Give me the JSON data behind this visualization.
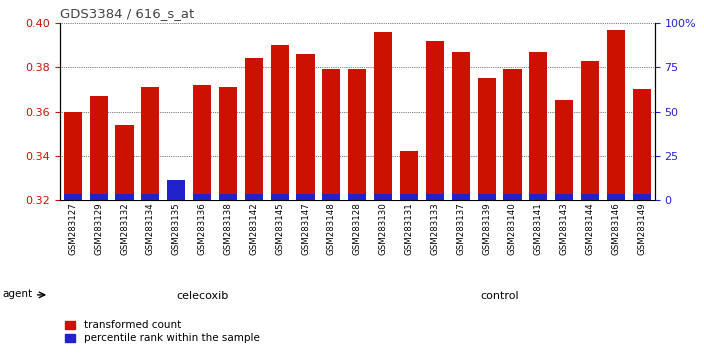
{
  "title": "GDS3384 / 616_s_at",
  "samples": [
    "GSM283127",
    "GSM283129",
    "GSM283132",
    "GSM283134",
    "GSM283135",
    "GSM283136",
    "GSM283138",
    "GSM283142",
    "GSM283145",
    "GSM283147",
    "GSM283148",
    "GSM283128",
    "GSM283130",
    "GSM283131",
    "GSM283133",
    "GSM283137",
    "GSM283139",
    "GSM283140",
    "GSM283141",
    "GSM283143",
    "GSM283144",
    "GSM283146",
    "GSM283149"
  ],
  "transformed_count": [
    0.36,
    0.367,
    0.354,
    0.371,
    0.321,
    0.372,
    0.371,
    0.384,
    0.39,
    0.386,
    0.379,
    0.379,
    0.396,
    0.342,
    0.392,
    0.387,
    0.375,
    0.379,
    0.387,
    0.365,
    0.383,
    0.397,
    0.37
  ],
  "percentile_rank_val": [
    0.3225,
    0.3225,
    0.3225,
    0.3225,
    0.329,
    0.3225,
    0.3225,
    0.3225,
    0.3225,
    0.3225,
    0.3225,
    0.3225,
    0.3225,
    0.3225,
    0.3225,
    0.3225,
    0.3225,
    0.3225,
    0.3225,
    0.3225,
    0.3225,
    0.3225,
    0.3225
  ],
  "celecoxib_count": 11,
  "control_count": 12,
  "ylim_left": [
    0.32,
    0.4
  ],
  "ylim_right": [
    0,
    100
  ],
  "yticks_left": [
    0.32,
    0.34,
    0.36,
    0.38,
    0.4
  ],
  "yticks_right": [
    0,
    25,
    50,
    75,
    100
  ],
  "bar_color_red": "#cc1100",
  "bar_color_blue": "#2222cc",
  "celecoxib_color": "#aaf0aa",
  "control_color": "#55dd55",
  "title_color": "#444444",
  "grid_color": "#000000",
  "tick_label_color_left": "#cc1100",
  "tick_label_color_right": "#2222cc",
  "bg_color": "#ffffff",
  "plot_bg_color": "#ffffff",
  "xtick_bg_color": "#d8d8d8",
  "legend_red_label": "transformed count",
  "legend_blue_label": "percentile rank within the sample"
}
